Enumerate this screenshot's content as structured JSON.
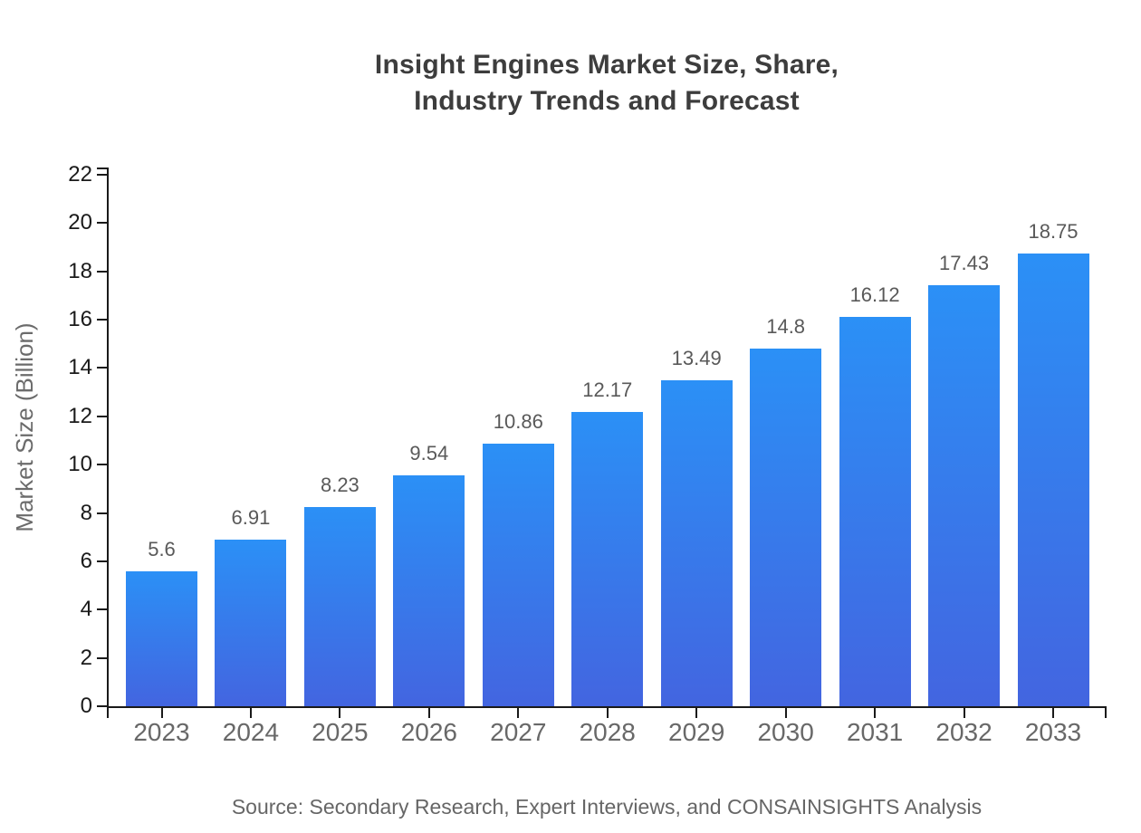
{
  "chart": {
    "title_line1": "Insight Engines Market Size, Share,",
    "title_line2": "Industry Trends and Forecast",
    "ylabel": "Market Size (Billion)",
    "source": "Source: Secondary Research, Expert Interviews, and CONSAINSIGHTS Analysis"
  },
  "chart_data": {
    "type": "bar",
    "title": "Insight Engines Market Size, Share, Industry Trends and Forecast",
    "categories": [
      "2023",
      "2024",
      "2025",
      "2026",
      "2027",
      "2028",
      "2029",
      "2030",
      "2031",
      "2032",
      "2033"
    ],
    "values": [
      5.6,
      6.91,
      8.23,
      9.54,
      10.86,
      12.17,
      13.49,
      14.8,
      16.12,
      17.43,
      18.75
    ],
    "value_labels": [
      "5.6",
      "6.91",
      "8.23",
      "9.54",
      "10.86",
      "12.17",
      "13.49",
      "14.8",
      "16.12",
      "17.43",
      "18.75"
    ],
    "xlabel": "",
    "ylabel": "Market Size (Billion)",
    "ylim": [
      0,
      22
    ],
    "yticks": [
      0,
      2,
      4,
      6,
      8,
      10,
      12,
      14,
      16,
      18,
      20,
      22
    ],
    "grid": false,
    "legend": false,
    "source": "Source: Secondary Research, Expert Interviews, and CONSAINSIGHTS Analysis",
    "colors": {
      "bar_gradient_top": "#2b90f6",
      "bar_gradient_bottom": "#4365e0",
      "axis": "#1a1a1a",
      "y_tick_label": "#1a1a1a",
      "category_label": "#686868",
      "value_label": "#595959",
      "title": "#3d3d3d",
      "source_text": "#666666",
      "background": "#ffffff"
    }
  }
}
